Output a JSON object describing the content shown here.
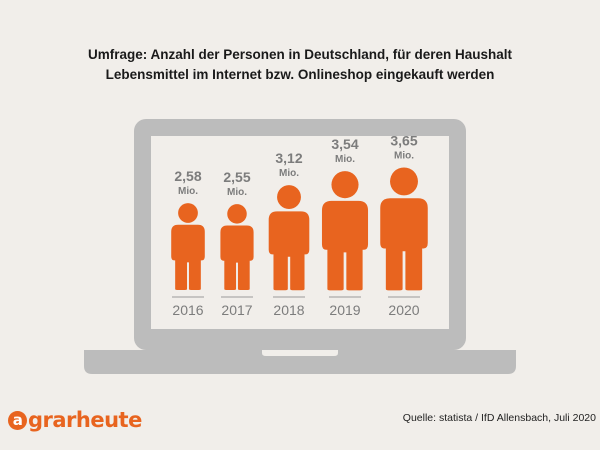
{
  "title_line1": "Umfrage: Anzahl der Personen in Deutschland, für deren Haushalt",
  "title_line2": "Lebensmittel im Internet bzw. Onlineshop eingekauft werden",
  "brand": {
    "letter": "a",
    "rest": "grarheute"
  },
  "source": "Quelle: statista / IfD Allensbach, Juli 2020",
  "colors": {
    "background": "#f1eeea",
    "laptop": "#bcbcbc",
    "screen": "#f1eeea",
    "person": "#e8641f",
    "value_text": "#7c7c7c",
    "year_text": "#7c7c7c"
  },
  "icons": {
    "laptop": "laptop-icon",
    "person": "person-icon"
  },
  "chart_data": {
    "type": "bar",
    "categories": [
      "2016",
      "2017",
      "2018",
      "2019",
      "2020"
    ],
    "values": [
      2.58,
      2.55,
      3.12,
      3.54,
      3.65
    ],
    "value_labels": [
      "2,58",
      "2,55",
      "3,12",
      "3,54",
      "3,65"
    ],
    "unit": "Mio.",
    "title": "Umfrage: Anzahl der Personen in Deutschland, für deren Haushalt Lebensmittel im Internet bzw. Onlineshop eingekauft werden",
    "xlabel": "",
    "ylabel": ""
  }
}
